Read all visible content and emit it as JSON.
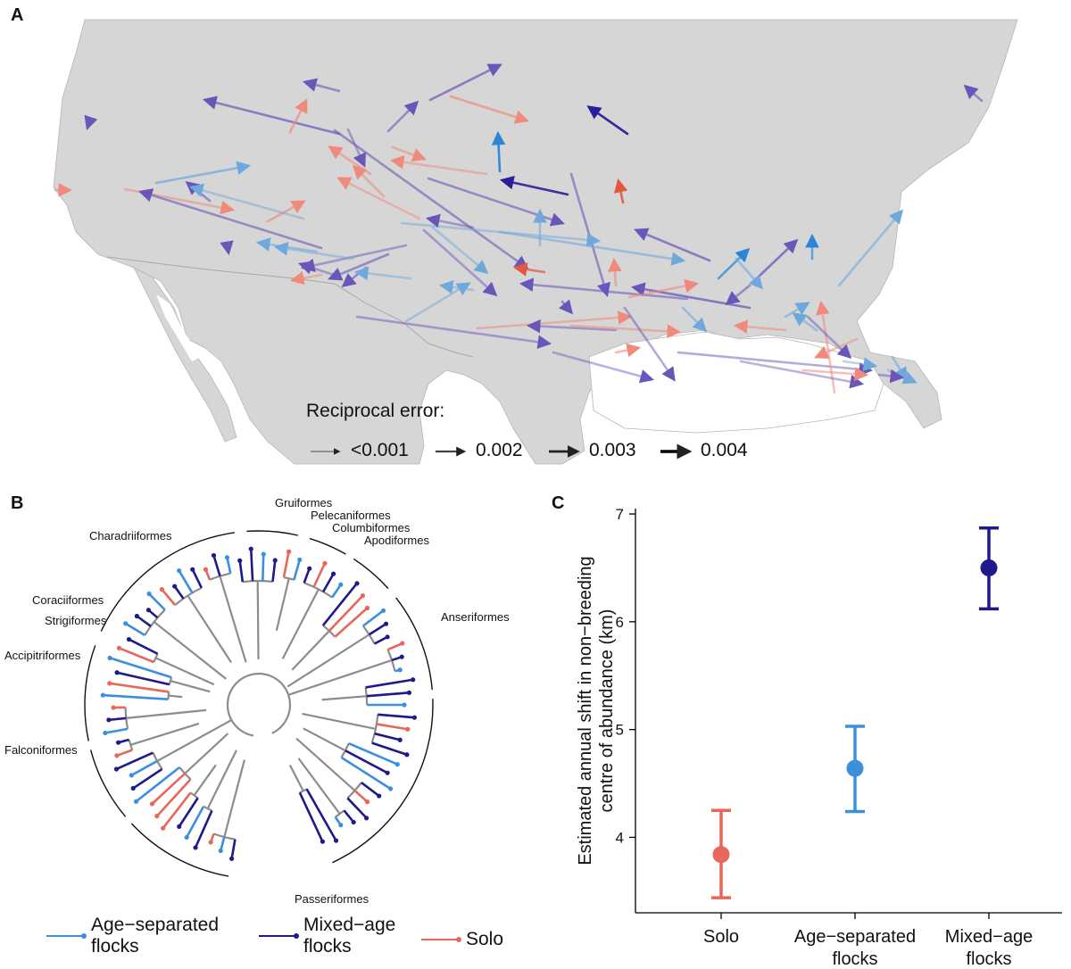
{
  "panels": {
    "a": "A",
    "b": "B",
    "c": "C"
  },
  "map": {
    "legend_title": "Reciprocal error:",
    "legend_items": [
      "<0.001",
      "0.002",
      "0.003",
      "0.004"
    ]
  },
  "tree": {
    "orders": [
      "Charadriiformes",
      "Gruiformes",
      "Pelecaniformes",
      "Columbiformes",
      "Apodiformes",
      "Anseriformes",
      "Coraciiformes",
      "Strigiformes",
      "Accipitriformes",
      "Falconiformes",
      "Passeriformes"
    ],
    "legend": {
      "age_separated_1": "Age−separated",
      "age_separated_2": "flocks",
      "mixed_age_1": "Mixed−age",
      "mixed_age_2": "flocks",
      "solo": "Solo"
    },
    "colors": {
      "age_separated": "#3b8fdc",
      "mixed_age": "#1f1a8a",
      "solo": "#e8675a",
      "internal": "#8c8c8c"
    }
  },
  "chart_data": {
    "type": "scatter",
    "subtype": "point-with-errorbars",
    "title": "",
    "ylabel_line1": "Estimated annual shift in non−breeding",
    "ylabel_line2": "centre of abundance (km)",
    "xlabel": "",
    "ylim": [
      3.3,
      7.05
    ],
    "yticks": [
      4,
      5,
      6,
      7
    ],
    "categories": [
      {
        "line1": "Solo",
        "line2": ""
      },
      {
        "line1": "Age−separated",
        "line2": "flocks"
      },
      {
        "line1": "Mixed−age",
        "line2": "flocks"
      }
    ],
    "series": [
      {
        "name": "Solo",
        "value": 3.84,
        "lower": 3.44,
        "upper": 4.25,
        "color": "#e8675a"
      },
      {
        "name": "Age-separated flocks",
        "value": 4.64,
        "lower": 4.24,
        "upper": 5.03,
        "color": "#3b8fdc"
      },
      {
        "name": "Mixed-age flocks",
        "value": 6.5,
        "lower": 6.12,
        "upper": 6.87,
        "color": "#1f1a8a"
      }
    ]
  }
}
